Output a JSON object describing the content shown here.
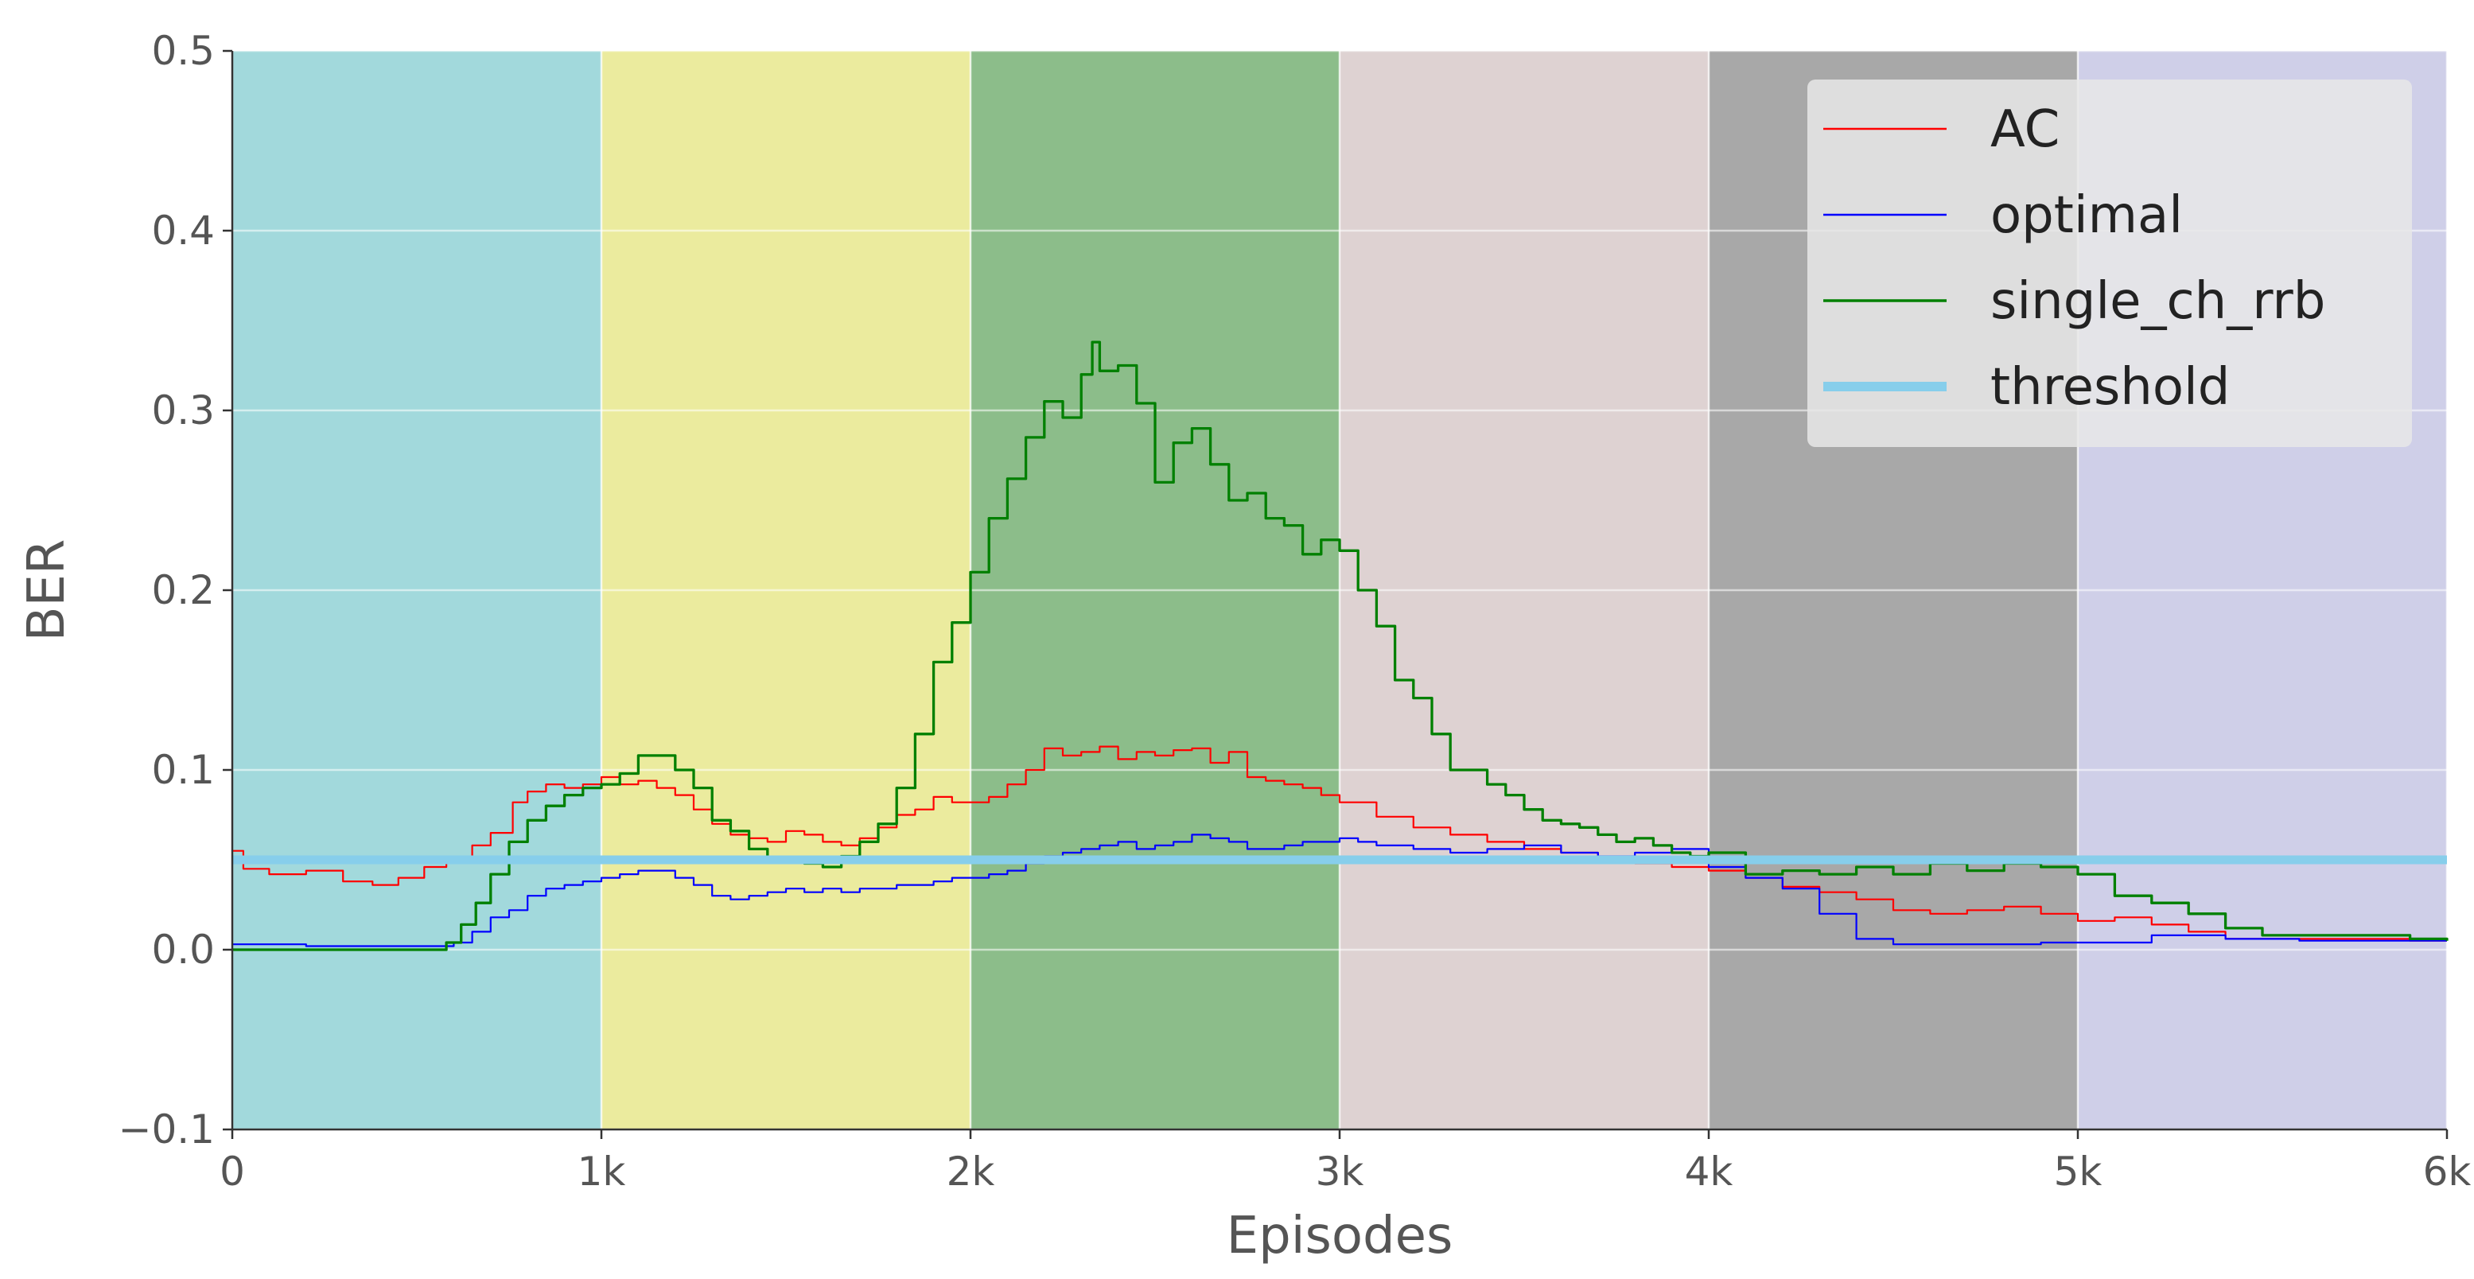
{
  "chart_data": {
    "type": "line",
    "title": "",
    "xlabel": "Episodes",
    "ylabel": "BER",
    "xlim": [
      0,
      6000
    ],
    "ylim": [
      -0.1,
      0.5
    ],
    "x_ticks": [
      0,
      1000,
      2000,
      3000,
      4000,
      5000,
      6000
    ],
    "x_tick_labels": [
      "0",
      "1k",
      "2k",
      "3k",
      "4k",
      "5k",
      "6k"
    ],
    "y_ticks": [
      -0.1,
      0.0,
      0.1,
      0.2,
      0.3,
      0.4,
      0.5
    ],
    "y_tick_labels": [
      "−0.1",
      "0.0",
      "0.1",
      "0.2",
      "0.3",
      "0.4",
      "0.5"
    ],
    "grid": true,
    "legend_position": "top-right",
    "background_bands": [
      {
        "x0": 0,
        "x1": 1000,
        "color": "#a2d9dc"
      },
      {
        "x0": 1000,
        "x1": 2000,
        "color": "#ebeb9e"
      },
      {
        "x0": 2000,
        "x1": 3000,
        "color": "#8cbd8a"
      },
      {
        "x0": 3000,
        "x1": 4000,
        "color": "#ded2d2"
      },
      {
        "x0": 4000,
        "x1": 5000,
        "color": "#a8a8a8"
      },
      {
        "x0": 5000,
        "x1": 6000,
        "color": "#cfcfe8"
      }
    ],
    "series": [
      {
        "name": "AC",
        "color": "#ff0000",
        "line_width": 1,
        "step": true,
        "x": [
          0,
          30,
          100,
          200,
          300,
          380,
          450,
          520,
          580,
          650,
          700,
          760,
          800,
          850,
          900,
          950,
          1000,
          1050,
          1100,
          1150,
          1200,
          1250,
          1300,
          1350,
          1400,
          1450,
          1500,
          1550,
          1600,
          1650,
          1700,
          1750,
          1800,
          1850,
          1900,
          1950,
          2000,
          2050,
          2100,
          2150,
          2200,
          2250,
          2300,
          2350,
          2400,
          2450,
          2500,
          2550,
          2600,
          2650,
          2700,
          2750,
          2800,
          2850,
          2900,
          2950,
          3000,
          3100,
          3200,
          3300,
          3400,
          3500,
          3600,
          3700,
          3800,
          3900,
          4000,
          4100,
          4200,
          4300,
          4400,
          4500,
          4600,
          4700,
          4800,
          4900,
          5000,
          5100,
          5200,
          5300,
          5400,
          5500,
          5600,
          5700,
          5800,
          5900,
          6000
        ],
        "values": [
          0.055,
          0.045,
          0.042,
          0.044,
          0.038,
          0.036,
          0.04,
          0.046,
          0.05,
          0.058,
          0.065,
          0.082,
          0.088,
          0.092,
          0.09,
          0.092,
          0.096,
          0.092,
          0.094,
          0.09,
          0.086,
          0.078,
          0.07,
          0.064,
          0.062,
          0.06,
          0.066,
          0.064,
          0.06,
          0.058,
          0.062,
          0.068,
          0.075,
          0.078,
          0.085,
          0.082,
          0.082,
          0.085,
          0.092,
          0.1,
          0.112,
          0.108,
          0.11,
          0.113,
          0.106,
          0.11,
          0.108,
          0.111,
          0.112,
          0.104,
          0.11,
          0.096,
          0.094,
          0.092,
          0.09,
          0.086,
          0.082,
          0.074,
          0.068,
          0.064,
          0.06,
          0.056,
          0.054,
          0.05,
          0.048,
          0.046,
          0.044,
          0.04,
          0.035,
          0.032,
          0.028,
          0.022,
          0.02,
          0.022,
          0.024,
          0.02,
          0.016,
          0.018,
          0.014,
          0.01,
          0.006,
          0.006,
          0.006,
          0.006,
          0.006,
          0.005,
          0.005
        ]
      },
      {
        "name": "optimal",
        "color": "#0000ff",
        "line_width": 1,
        "step": true,
        "x": [
          0,
          100,
          200,
          300,
          400,
          500,
          560,
          600,
          650,
          700,
          750,
          800,
          850,
          900,
          950,
          1000,
          1050,
          1100,
          1150,
          1200,
          1250,
          1300,
          1350,
          1400,
          1450,
          1500,
          1550,
          1600,
          1650,
          1700,
          1750,
          1800,
          1850,
          1900,
          1950,
          2000,
          2050,
          2100,
          2150,
          2200,
          2250,
          2300,
          2350,
          2400,
          2450,
          2500,
          2550,
          2600,
          2650,
          2700,
          2750,
          2800,
          2850,
          2900,
          2950,
          3000,
          3050,
          3100,
          3200,
          3300,
          3400,
          3500,
          3600,
          3700,
          3800,
          3900,
          3950,
          4000,
          4100,
          4200,
          4300,
          4400,
          4500,
          4600,
          4700,
          4800,
          4900,
          5000,
          5100,
          5200,
          5300,
          5400,
          5500,
          5600,
          5700,
          5800,
          5900,
          6000
        ],
        "values": [
          0.003,
          0.003,
          0.002,
          0.002,
          0.002,
          0.002,
          0.002,
          0.004,
          0.01,
          0.018,
          0.022,
          0.03,
          0.034,
          0.036,
          0.038,
          0.04,
          0.042,
          0.044,
          0.044,
          0.04,
          0.036,
          0.03,
          0.028,
          0.03,
          0.032,
          0.034,
          0.032,
          0.034,
          0.032,
          0.034,
          0.034,
          0.036,
          0.036,
          0.038,
          0.04,
          0.04,
          0.042,
          0.044,
          0.048,
          0.052,
          0.054,
          0.056,
          0.058,
          0.06,
          0.056,
          0.058,
          0.06,
          0.064,
          0.062,
          0.06,
          0.056,
          0.056,
          0.058,
          0.06,
          0.06,
          0.062,
          0.06,
          0.058,
          0.056,
          0.054,
          0.056,
          0.058,
          0.054,
          0.052,
          0.054,
          0.056,
          0.056,
          0.046,
          0.04,
          0.034,
          0.02,
          0.006,
          0.003,
          0.003,
          0.003,
          0.003,
          0.004,
          0.004,
          0.004,
          0.008,
          0.008,
          0.006,
          0.006,
          0.005,
          0.005,
          0.005,
          0.005,
          0.005
        ]
      },
      {
        "name": "single_ch_rrb",
        "color": "#008000",
        "line_width": 1.5,
        "step": true,
        "x": [
          0,
          100,
          200,
          300,
          400,
          500,
          580,
          620,
          660,
          700,
          750,
          800,
          850,
          900,
          950,
          1000,
          1050,
          1100,
          1150,
          1200,
          1250,
          1300,
          1350,
          1400,
          1450,
          1500,
          1550,
          1600,
          1650,
          1700,
          1750,
          1800,
          1850,
          1900,
          1950,
          2000,
          2050,
          2100,
          2150,
          2200,
          2250,
          2300,
          2330,
          2350,
          2400,
          2450,
          2500,
          2550,
          2600,
          2650,
          2700,
          2750,
          2800,
          2850,
          2900,
          2950,
          3000,
          3050,
          3100,
          3150,
          3200,
          3250,
          3300,
          3350,
          3400,
          3450,
          3500,
          3550,
          3600,
          3650,
          3700,
          3750,
          3800,
          3850,
          3900,
          3950,
          4000,
          4100,
          4200,
          4300,
          4400,
          4500,
          4600,
          4700,
          4800,
          4900,
          5000,
          5100,
          5200,
          5300,
          5400,
          5500,
          5600,
          5700,
          5800,
          5900,
          6000
        ],
        "values": [
          0.0,
          0.0,
          0.0,
          0.0,
          0.0,
          0.0,
          0.004,
          0.014,
          0.026,
          0.042,
          0.06,
          0.072,
          0.08,
          0.086,
          0.09,
          0.092,
          0.098,
          0.108,
          0.108,
          0.1,
          0.09,
          0.072,
          0.066,
          0.056,
          0.05,
          0.05,
          0.048,
          0.046,
          0.052,
          0.06,
          0.07,
          0.09,
          0.12,
          0.16,
          0.182,
          0.21,
          0.24,
          0.262,
          0.285,
          0.305,
          0.296,
          0.32,
          0.338,
          0.322,
          0.325,
          0.304,
          0.26,
          0.282,
          0.29,
          0.27,
          0.25,
          0.254,
          0.24,
          0.236,
          0.22,
          0.228,
          0.222,
          0.2,
          0.18,
          0.15,
          0.14,
          0.12,
          0.1,
          0.1,
          0.092,
          0.086,
          0.078,
          0.072,
          0.07,
          0.068,
          0.064,
          0.06,
          0.062,
          0.058,
          0.054,
          0.052,
          0.054,
          0.042,
          0.044,
          0.042,
          0.046,
          0.042,
          0.048,
          0.044,
          0.048,
          0.046,
          0.042,
          0.03,
          0.026,
          0.02,
          0.012,
          0.008,
          0.008,
          0.008,
          0.008,
          0.006,
          0.005
        ]
      },
      {
        "name": "threshold",
        "color": "#87ceeb",
        "line_width": 5,
        "step": false,
        "x": [
          0,
          6000
        ],
        "values": [
          0.05,
          0.05
        ]
      }
    ]
  }
}
